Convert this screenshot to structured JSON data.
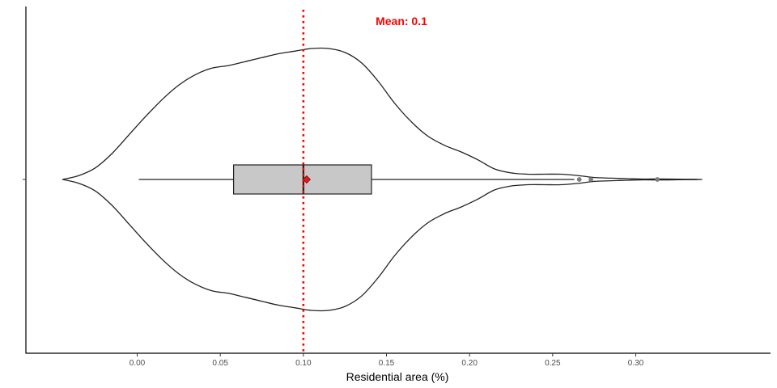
{
  "chart_data": {
    "type": "violin",
    "orientation": "horizontal",
    "title": "",
    "xlabel": "Residential area (%)",
    "ylabel": "",
    "xlim": [
      -0.048,
      0.342
    ],
    "x_ticks": [
      0.0,
      0.05,
      0.1,
      0.15,
      0.2,
      0.25,
      0.3
    ],
    "x_tick_labels": [
      "0.00",
      "0.05",
      "0.10",
      "0.15",
      "0.20",
      "0.25",
      "0.30"
    ],
    "grid": false,
    "legend": "none",
    "violin_density": {
      "x": [
        -0.045,
        -0.035,
        -0.025,
        -0.015,
        -0.005,
        0.005,
        0.015,
        0.025,
        0.035,
        0.045,
        0.055,
        0.065,
        0.075,
        0.085,
        0.095,
        0.105,
        0.115,
        0.125,
        0.135,
        0.145,
        0.155,
        0.165,
        0.175,
        0.185,
        0.195,
        0.205,
        0.215,
        0.225,
        0.235,
        0.245,
        0.255,
        0.265,
        0.275,
        0.285,
        0.295,
        0.305,
        0.315,
        0.325,
        0.335,
        0.34
      ],
      "relative_width": [
        0.0,
        0.03,
        0.09,
        0.2,
        0.34,
        0.48,
        0.61,
        0.72,
        0.8,
        0.85,
        0.87,
        0.9,
        0.93,
        0.96,
        0.98,
        1.0,
        1.0,
        0.97,
        0.89,
        0.75,
        0.58,
        0.44,
        0.33,
        0.26,
        0.21,
        0.15,
        0.08,
        0.05,
        0.04,
        0.04,
        0.04,
        0.03,
        0.015,
        0.01,
        0.006,
        0.003,
        0.004,
        0.002,
        0.001,
        0.0
      ]
    },
    "boxplot": {
      "whisker_low": 0.001,
      "q1": 0.058,
      "median": 0.1,
      "q3": 0.141,
      "whisker_high": 0.263,
      "mean": 0.102,
      "outliers": [
        0.266,
        0.273,
        0.313
      ]
    },
    "mean_line": {
      "x": 0.1,
      "color": "#ff0000",
      "label": "Mean: 0.1"
    },
    "colors": {
      "violin_outline": "#222222",
      "box_fill": "#c8c8c8",
      "box_outline": "#222222",
      "mean_marker": "#e31a1c",
      "outlier": "#7f7f7f",
      "axis": "#000000"
    }
  }
}
